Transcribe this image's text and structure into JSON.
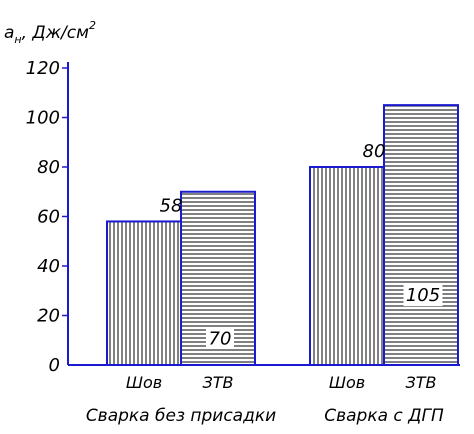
{
  "chart_data": {
    "type": "bar",
    "ylabel_main": "a",
    "ylabel_sub": "н",
    "ylabel_unit": ", Дж/см",
    "ylabel_power": "2",
    "ylim": [
      0,
      120
    ],
    "yticks": [
      0,
      20,
      40,
      60,
      80,
      100,
      120
    ],
    "grid": false,
    "legend": "none",
    "groups": [
      {
        "label": "Сварка без присадки",
        "bars": [
          {
            "category": "Шов",
            "value": 58,
            "label": "58",
            "pattern": "vertical"
          },
          {
            "category": "ЗТВ",
            "value": 70,
            "label": "70",
            "pattern": "horizontal"
          }
        ]
      },
      {
        "label": "Сварка с ДГП",
        "bars": [
          {
            "category": "Шов",
            "value": 80,
            "label": "80",
            "pattern": "vertical"
          },
          {
            "category": "ЗТВ",
            "value": 105,
            "label": "105",
            "pattern": "horizontal"
          }
        ]
      }
    ],
    "colors": {
      "frame": "#1a1ad0",
      "hatch": "#000000"
    }
  }
}
